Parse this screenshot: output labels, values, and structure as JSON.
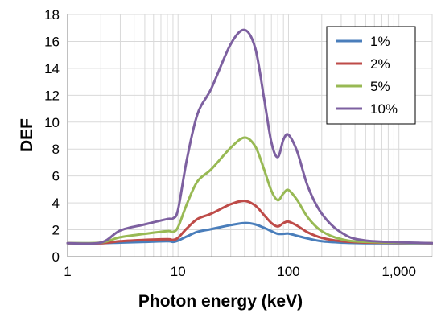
{
  "chart_data": {
    "type": "line",
    "xlabel": "Photon energy (keV)",
    "ylabel": "DEF",
    "xscale": "log",
    "xlim": [
      1,
      2000
    ],
    "ylim": [
      0,
      18
    ],
    "x_ticks": [
      1,
      10,
      100,
      1000
    ],
    "x_tick_labels": [
      "1",
      "10",
      "100",
      "1,000"
    ],
    "y_ticks": [
      0,
      2,
      4,
      6,
      8,
      10,
      12,
      14,
      16,
      18
    ],
    "y_tick_labels": [
      "0",
      "2",
      "4",
      "6",
      "8",
      "10",
      "12",
      "14",
      "16",
      "18"
    ],
    "grid": true,
    "legend_position": "top-right",
    "series": [
      {
        "name": "1%",
        "color": "#4a7ebb",
        "points": [
          [
            1,
            1.0
          ],
          [
            2,
            1.0
          ],
          [
            3,
            1.05
          ],
          [
            5,
            1.1
          ],
          [
            8,
            1.15
          ],
          [
            9,
            1.1
          ],
          [
            10,
            1.2
          ],
          [
            12,
            1.5
          ],
          [
            15,
            1.85
          ],
          [
            20,
            2.05
          ],
          [
            30,
            2.35
          ],
          [
            40,
            2.5
          ],
          [
            50,
            2.4
          ],
          [
            60,
            2.15
          ],
          [
            70,
            1.9
          ],
          [
            80,
            1.7
          ],
          [
            90,
            1.7
          ],
          [
            100,
            1.72
          ],
          [
            120,
            1.55
          ],
          [
            150,
            1.35
          ],
          [
            200,
            1.15
          ],
          [
            300,
            1.05
          ],
          [
            500,
            1.0
          ],
          [
            2000,
            1.0
          ]
        ]
      },
      {
        "name": "2%",
        "color": "#be4b48",
        "points": [
          [
            1,
            1.0
          ],
          [
            2,
            1.0
          ],
          [
            3,
            1.15
          ],
          [
            5,
            1.25
          ],
          [
            8,
            1.3
          ],
          [
            9,
            1.25
          ],
          [
            10,
            1.4
          ],
          [
            12,
            2.1
          ],
          [
            15,
            2.8
          ],
          [
            20,
            3.2
          ],
          [
            30,
            3.9
          ],
          [
            40,
            4.15
          ],
          [
            50,
            3.8
          ],
          [
            60,
            3.1
          ],
          [
            70,
            2.5
          ],
          [
            80,
            2.25
          ],
          [
            90,
            2.5
          ],
          [
            100,
            2.6
          ],
          [
            120,
            2.3
          ],
          [
            150,
            1.8
          ],
          [
            200,
            1.4
          ],
          [
            300,
            1.15
          ],
          [
            500,
            1.05
          ],
          [
            2000,
            1.0
          ]
        ]
      },
      {
        "name": "5%",
        "color": "#98b954",
        "points": [
          [
            1,
            1.0
          ],
          [
            2,
            1.05
          ],
          [
            3,
            1.45
          ],
          [
            5,
            1.7
          ],
          [
            8,
            1.9
          ],
          [
            9,
            1.85
          ],
          [
            10,
            2.2
          ],
          [
            12,
            3.9
          ],
          [
            15,
            5.6
          ],
          [
            20,
            6.5
          ],
          [
            30,
            8.1
          ],
          [
            40,
            8.85
          ],
          [
            50,
            8.2
          ],
          [
            60,
            6.5
          ],
          [
            70,
            4.9
          ],
          [
            80,
            4.2
          ],
          [
            90,
            4.7
          ],
          [
            100,
            4.95
          ],
          [
            120,
            4.2
          ],
          [
            150,
            2.9
          ],
          [
            200,
            1.9
          ],
          [
            300,
            1.3
          ],
          [
            500,
            1.1
          ],
          [
            2000,
            1.0
          ]
        ]
      },
      {
        "name": "10%",
        "color": "#7d60a0",
        "points": [
          [
            1,
            1.0
          ],
          [
            2,
            1.05
          ],
          [
            3,
            1.95
          ],
          [
            5,
            2.4
          ],
          [
            8,
            2.8
          ],
          [
            9,
            2.85
          ],
          [
            10,
            3.5
          ],
          [
            12,
            7.2
          ],
          [
            15,
            10.6
          ],
          [
            20,
            12.5
          ],
          [
            30,
            15.8
          ],
          [
            40,
            16.85
          ],
          [
            50,
            15.5
          ],
          [
            60,
            11.8
          ],
          [
            70,
            8.5
          ],
          [
            80,
            7.4
          ],
          [
            90,
            8.7
          ],
          [
            100,
            9.05
          ],
          [
            120,
            7.8
          ],
          [
            150,
            5.2
          ],
          [
            200,
            3.2
          ],
          [
            300,
            1.8
          ],
          [
            500,
            1.2
          ],
          [
            2000,
            1.0
          ]
        ]
      }
    ]
  }
}
